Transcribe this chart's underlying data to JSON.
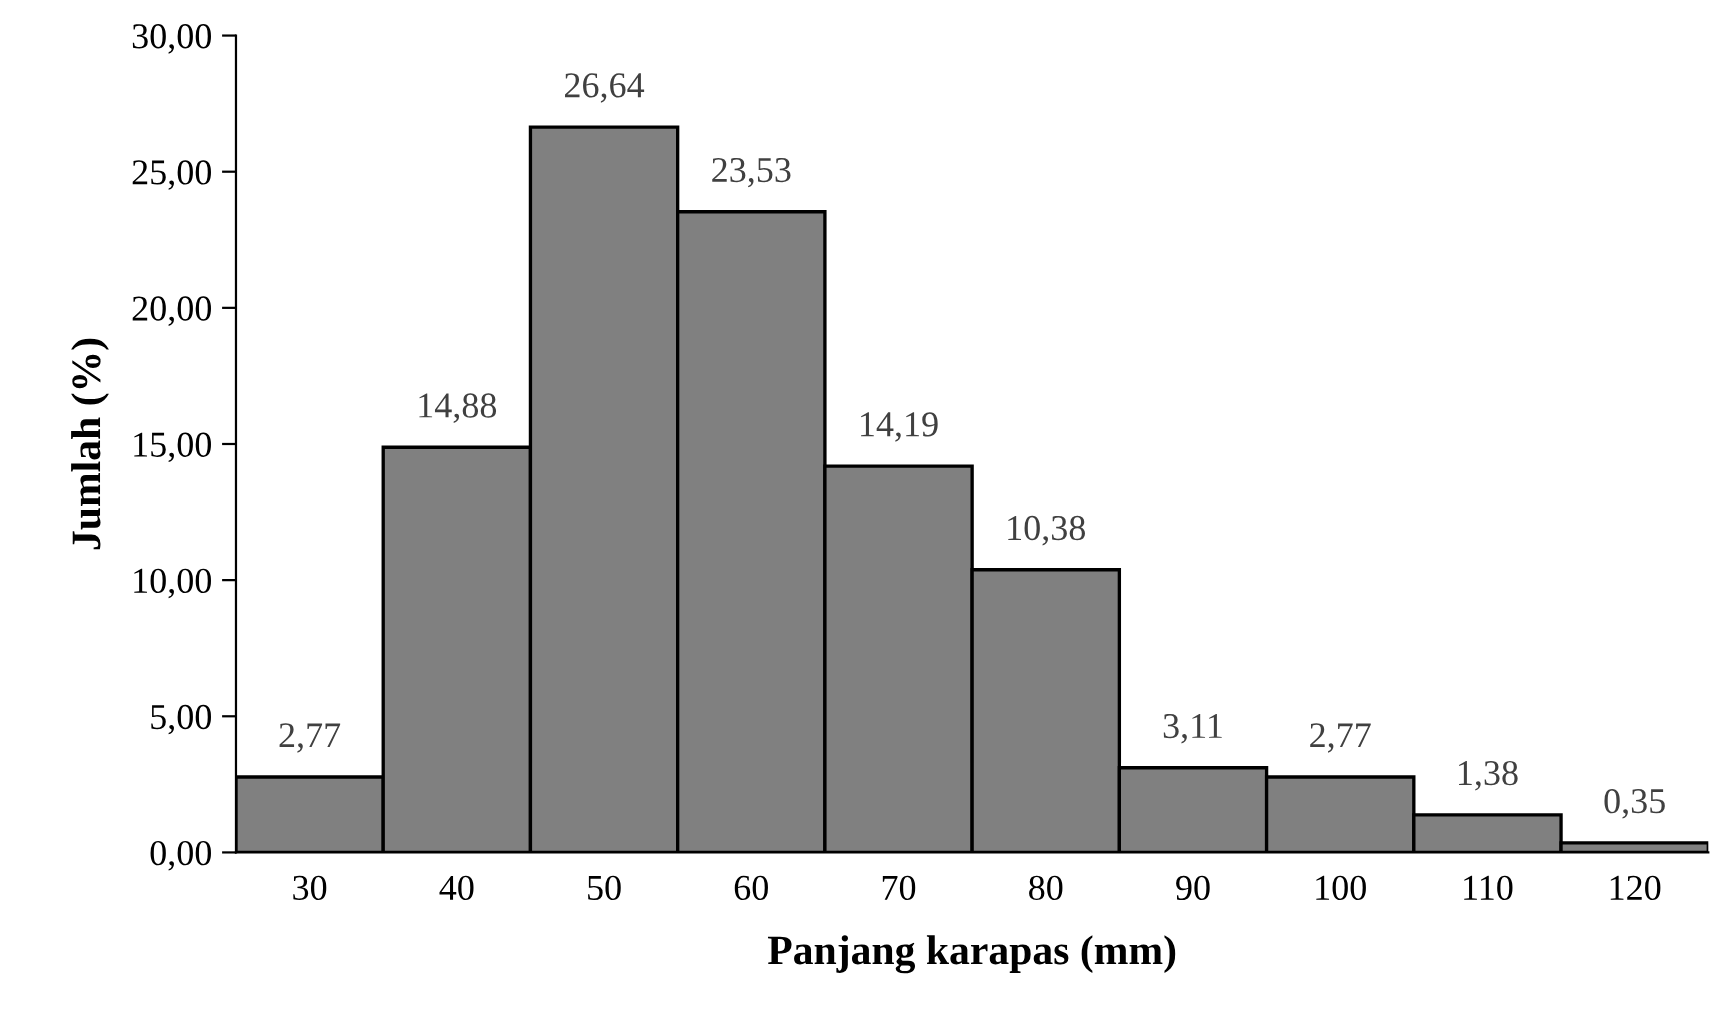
{
  "chart_data": {
    "type": "bar",
    "xlabel": "Panjang karapas (mm)",
    "ylabel": "Jumlah (%)",
    "categories": [
      "30",
      "40",
      "50",
      "60",
      "70",
      "80",
      "90",
      "100",
      "110",
      "120"
    ],
    "values": [
      2.77,
      14.88,
      26.64,
      23.53,
      14.19,
      10.38,
      3.11,
      2.77,
      1.38,
      0.35
    ],
    "value_labels": [
      "2,77",
      "14,88",
      "26,64",
      "23,53",
      "14,19",
      "10,38",
      "3,11",
      "2,77",
      "1,38",
      "0,35"
    ],
    "color": "#808080",
    "ylim": [
      0,
      30
    ],
    "yticks": [
      {
        "value": 0,
        "label": "0,00"
      },
      {
        "value": 5,
        "label": "5,00"
      },
      {
        "value": 10,
        "label": "10,00"
      },
      {
        "value": 15,
        "label": "15,00"
      },
      {
        "value": 20,
        "label": "20,00"
      },
      {
        "value": 25,
        "label": "25,00"
      },
      {
        "value": 30,
        "label": "30,00"
      }
    ],
    "grid": false,
    "legend": false
  }
}
